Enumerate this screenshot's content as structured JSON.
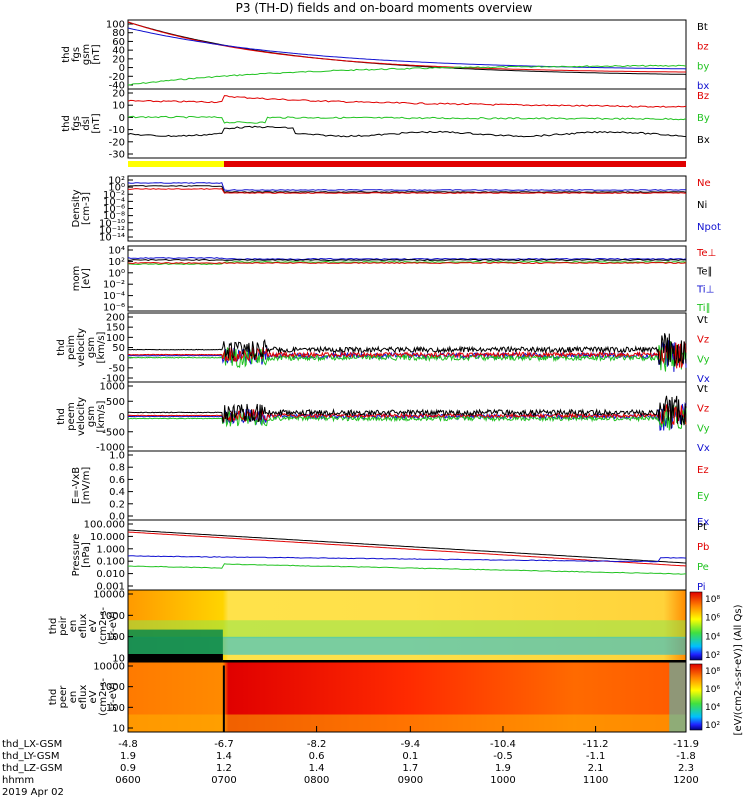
{
  "title": "P3 (TH-D) fields and on-board moments overview",
  "colors": {
    "black": "#000000",
    "red": "#e00000",
    "green": "#22c322",
    "blue": "#1010d0",
    "yellow": "#ffff00"
  },
  "chart_data": {
    "type": "line",
    "panels": [
      {
        "id": "fgs-gsm",
        "ylabel": [
          "thd",
          "fgs",
          "gsm",
          "[nT]"
        ],
        "ticks": [
          "100",
          "80",
          "60",
          "40",
          "20",
          "0",
          "-20",
          "-40"
        ],
        "series": [
          {
            "name": "Bt",
            "color": "black"
          },
          {
            "name": "bz",
            "color": "red"
          },
          {
            "name": "by",
            "color": "green"
          },
          {
            "name": "bx",
            "color": "blue"
          }
        ]
      },
      {
        "id": "fgs-dsl",
        "ylabel": [
          "thd",
          "fgs",
          "dsl",
          "[nT]"
        ],
        "ticks": [
          "20",
          "10",
          "0",
          "-10",
          "-20",
          "-30"
        ],
        "series": [
          {
            "name": "Bz",
            "color": "red"
          },
          {
            "name": "By",
            "color": "green"
          },
          {
            "name": "Bx",
            "color": "black"
          }
        ]
      },
      {
        "id": "density",
        "ylabel": [
          "Density",
          "[cm-3]"
        ],
        "ticks": [
          "10²",
          "10⁰",
          "10⁻²",
          "10⁻⁴",
          "10⁻⁶",
          "10⁻⁸",
          "10⁻¹⁰",
          "10⁻¹²",
          "10⁻¹⁴"
        ],
        "series": [
          {
            "name": "Ne",
            "color": "red"
          },
          {
            "name": "Ni",
            "color": "black"
          },
          {
            "name": "Npot",
            "color": "blue"
          }
        ]
      },
      {
        "id": "temperature",
        "ylabel": [
          "mom",
          "[eV]"
        ],
        "ticks": [
          "10⁴",
          "10²",
          "10⁰",
          "10⁻²",
          "10⁻⁴",
          "10⁻⁶"
        ],
        "series": [
          {
            "name": "Te⊥",
            "color": "red"
          },
          {
            "name": "Te∥",
            "color": "black"
          },
          {
            "name": "Ti⊥",
            "color": "blue"
          },
          {
            "name": "Ti∥",
            "color": "green"
          }
        ]
      },
      {
        "id": "peim-velocity",
        "ylabel": [
          "thd",
          "peim",
          "velocity",
          "gsm",
          "[km/s]"
        ],
        "ticks": [
          "200",
          "150",
          "100",
          "50",
          "0",
          "-50",
          "-100"
        ],
        "series": [
          {
            "name": "Vt",
            "color": "black"
          },
          {
            "name": "Vz",
            "color": "red"
          },
          {
            "name": "Vy",
            "color": "green"
          },
          {
            "name": "Vx",
            "color": "blue"
          }
        ]
      },
      {
        "id": "peem-velocity",
        "ylabel": [
          "thd",
          "peem",
          "velocity",
          "gsm",
          "[km/s]"
        ],
        "ticks": [
          "1000",
          "500",
          "0",
          "-500",
          "-1000"
        ],
        "series": [
          {
            "name": "Vt",
            "color": "black"
          },
          {
            "name": "Vz",
            "color": "red"
          },
          {
            "name": "Vy",
            "color": "green"
          },
          {
            "name": "Vx",
            "color": "blue"
          }
        ]
      },
      {
        "id": "efield",
        "ylabel": [
          "E=-VxB",
          "[mV/m]"
        ],
        "ticks": [
          "1.0",
          "0.8",
          "0.6",
          "0.4",
          "0.2",
          "0.0"
        ],
        "series": [
          {
            "name": "Ez",
            "color": "red"
          },
          {
            "name": "Ey",
            "color": "green"
          },
          {
            "name": "Ex",
            "color": "blue"
          }
        ]
      },
      {
        "id": "pressure",
        "ylabel": [
          "Pressure",
          "[nPa]"
        ],
        "ticks": [
          "100.000",
          "10.000",
          "1.000",
          "0.100",
          "0.010",
          "0.001"
        ],
        "series": [
          {
            "name": "Pt",
            "color": "black"
          },
          {
            "name": "Pb",
            "color": "red"
          },
          {
            "name": "Pe",
            "color": "green"
          },
          {
            "name": "Pi",
            "color": "blue"
          }
        ]
      },
      {
        "id": "peir-eflux",
        "ylabel": [
          "thd",
          "peir",
          "en",
          "eflux",
          "eV",
          "(cm2-s-",
          "sr-eV)"
        ],
        "ticks": [
          "10000",
          "1000",
          "100",
          "10"
        ],
        "colorbar": {
          "ticks": [
            "10⁸",
            "10⁶",
            "10⁴",
            "10²"
          ],
          "label": "[eV/(cm2-s-sr-eV)] (All Qs)"
        }
      },
      {
        "id": "peer-eflux",
        "ylabel": [
          "thd",
          "peer",
          "en",
          "eflux",
          "eV",
          "(cm2-s-",
          "sr-eV)"
        ],
        "ticks": [
          "10000",
          "1000",
          "100",
          "10"
        ],
        "colorbar": {
          "ticks": [
            "10⁸",
            "10⁶",
            "10⁴",
            "10²"
          ]
        }
      }
    ],
    "xaxis": {
      "rows": [
        {
          "label": "thd_LX-GSM",
          "values": [
            "-4.8",
            "-6.7",
            "-8.2",
            "-9.4",
            "-10.4",
            "-11.2",
            "-11.9"
          ]
        },
        {
          "label": "thd_LY-GSM",
          "values": [
            "1.9",
            "1.4",
            "0.6",
            "0.1",
            "-0.5",
            "-1.1",
            "-1.8"
          ]
        },
        {
          "label": "thd_LZ-GSM",
          "values": [
            "0.9",
            "1.2",
            "1.4",
            "1.7",
            "1.9",
            "2.1",
            "2.3"
          ]
        },
        {
          "label": "hhmm",
          "values": [
            "0600",
            "0700",
            "0800",
            "0900",
            "1000",
            "1100",
            "1200"
          ]
        }
      ],
      "date": "2019 Apr 02"
    }
  }
}
